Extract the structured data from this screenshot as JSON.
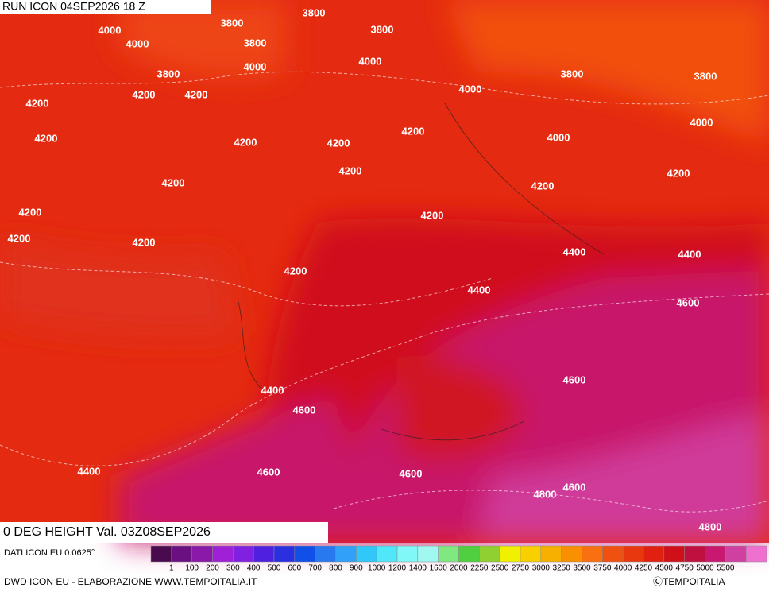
{
  "header": {
    "run": "RUN ICON 04SEP2026 18 Z"
  },
  "map": {
    "variable_label": "0 DEG HEIGHT Val. 03Z08SEP2026",
    "contour_labels": [
      "3800",
      "4000",
      "3800",
      "3800",
      "4000",
      "3800",
      "4000",
      "4000",
      "3800",
      "3800",
      "3800",
      "4000",
      "4200",
      "4200",
      "4200",
      "4000",
      "4200",
      "4200",
      "4000",
      "4200",
      "4200",
      "4200",
      "4200",
      "4200",
      "4200",
      "4200",
      "4200",
      "4200",
      "4200",
      "4400",
      "4400",
      "4200",
      "4400",
      "4600",
      "4400",
      "4600",
      "4600",
      "4400",
      "4600",
      "4600",
      "4800",
      "4600",
      "4800"
    ]
  },
  "colorbar": {
    "source": "DATI ICON EU 0.0625°",
    "labels": [
      "1",
      "100",
      "200",
      "300",
      "400",
      "500",
      "600",
      "700",
      "800",
      "900",
      "1000",
      "1200",
      "1400",
      "1600",
      "2000",
      "2250",
      "2500",
      "2750",
      "3000",
      "3250",
      "3500",
      "3750",
      "4000",
      "4250",
      "4500",
      "4750",
      "5000",
      "5500"
    ],
    "colors": [
      "#4a0a4e",
      "#6a1080",
      "#8a18a8",
      "#a020d8",
      "#8020e0",
      "#5020e0",
      "#2a30e0",
      "#1050e8",
      "#2878f0",
      "#30a0f8",
      "#30c8f8",
      "#50e8f8",
      "#80f8f8",
      "#a0f8f0",
      "#80e880",
      "#50d040",
      "#90d030",
      "#f0f000",
      "#f8d000",
      "#f8b000",
      "#f89000",
      "#f87010",
      "#f05010",
      "#e83810",
      "#e02010",
      "#d01018",
      "#c01040",
      "#c81870",
      "#d040a0",
      "#f070d0"
    ]
  },
  "footer": {
    "credit": "DWD ICON EU - ELABORAZIONE WWW.TEMPOITALIA.IT",
    "copyright": "ⒸTEMPOITALIA"
  }
}
